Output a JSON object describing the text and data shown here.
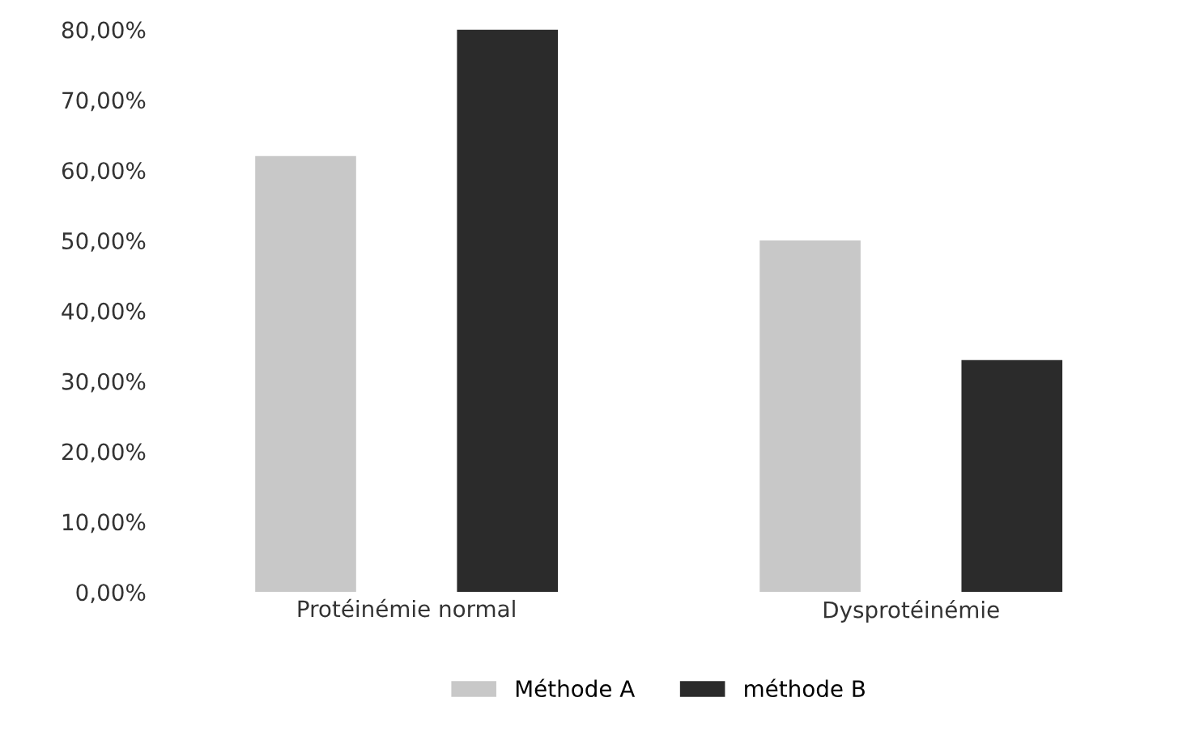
{
  "chart_data": {
    "type": "bar",
    "categories": [
      "Protéinémie normal",
      "Dysprotéinémie"
    ],
    "series": [
      {
        "name": "Méthode A",
        "color": "#c8c8c8",
        "values": [
          62,
          50
        ]
      },
      {
        "name": "méthode B",
        "color": "#2b2b2b",
        "values": [
          80,
          33
        ]
      }
    ],
    "ylim": [
      0,
      80
    ],
    "yticks": [
      {
        "value": 0,
        "label": "0,00%"
      },
      {
        "value": 10,
        "label": "10,00%"
      },
      {
        "value": 20,
        "label": "20,00%"
      },
      {
        "value": 30,
        "label": "30,00%"
      },
      {
        "value": 40,
        "label": "40,00%"
      },
      {
        "value": 50,
        "label": "50,00%"
      },
      {
        "value": 60,
        "label": "60,00%"
      },
      {
        "value": 70,
        "label": "70,00%"
      },
      {
        "value": 80,
        "label": "80,00%"
      }
    ],
    "grid": false,
    "legend": "bottom"
  }
}
